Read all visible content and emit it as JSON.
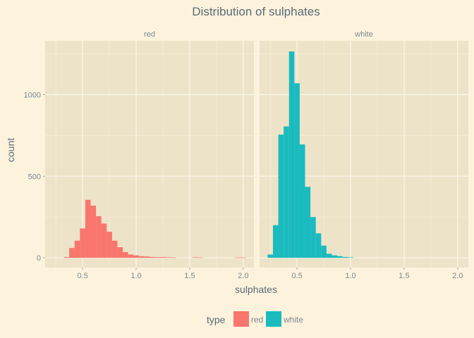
{
  "chart_data": {
    "type": "bar",
    "title": "Distribution of  sulphates",
    "xlabel": "sulphates",
    "ylabel": "count",
    "xlim": [
      0.15,
      2.1
    ],
    "ylim": [
      -60,
      1330
    ],
    "xticks": [
      {
        "value": 0.5,
        "label": "0.5"
      },
      {
        "value": 1.0,
        "label": "1.0"
      },
      {
        "value": 1.5,
        "label": "1.5"
      },
      {
        "value": 2.0,
        "label": "2.0"
      }
    ],
    "yticks": [
      {
        "value": 0,
        "label": "0"
      },
      {
        "value": 500,
        "label": "500"
      },
      {
        "value": 1000,
        "label": "1000"
      }
    ],
    "grid": true,
    "bin_width": 0.05,
    "legend": {
      "title": "type",
      "placement": "bottom",
      "items": [
        {
          "label": "red",
          "color": "#f8766d"
        },
        {
          "label": "white",
          "color": "#1abbbf"
        }
      ]
    },
    "panels": [
      {
        "label": "red",
        "color": "#f8766d",
        "bins": [
          {
            "x": 0.35,
            "count": 5
          },
          {
            "x": 0.4,
            "count": 60
          },
          {
            "x": 0.45,
            "count": 105
          },
          {
            "x": 0.5,
            "count": 180
          },
          {
            "x": 0.55,
            "count": 355
          },
          {
            "x": 0.6,
            "count": 320
          },
          {
            "x": 0.65,
            "count": 255
          },
          {
            "x": 0.7,
            "count": 210
          },
          {
            "x": 0.75,
            "count": 160
          },
          {
            "x": 0.8,
            "count": 105
          },
          {
            "x": 0.85,
            "count": 65
          },
          {
            "x": 0.9,
            "count": 35
          },
          {
            "x": 0.95,
            "count": 20
          },
          {
            "x": 1.0,
            "count": 15
          },
          {
            "x": 1.05,
            "count": 10
          },
          {
            "x": 1.1,
            "count": 8
          },
          {
            "x": 1.15,
            "count": 5
          },
          {
            "x": 1.2,
            "count": 4
          },
          {
            "x": 1.25,
            "count": 5
          },
          {
            "x": 1.3,
            "count": 3
          },
          {
            "x": 1.35,
            "count": 2
          },
          {
            "x": 1.55,
            "count": 3
          },
          {
            "x": 1.6,
            "count": 2
          },
          {
            "x": 1.95,
            "count": 2
          },
          {
            "x": 2.0,
            "count": 2
          }
        ]
      },
      {
        "label": "white",
        "color": "#1abbbf",
        "bins": [
          {
            "x": 0.25,
            "count": 20
          },
          {
            "x": 0.3,
            "count": 200
          },
          {
            "x": 0.35,
            "count": 755
          },
          {
            "x": 0.4,
            "count": 805
          },
          {
            "x": 0.45,
            "count": 1265
          },
          {
            "x": 0.5,
            "count": 1070
          },
          {
            "x": 0.55,
            "count": 695
          },
          {
            "x": 0.6,
            "count": 435
          },
          {
            "x": 0.65,
            "count": 250
          },
          {
            "x": 0.7,
            "count": 150
          },
          {
            "x": 0.75,
            "count": 75
          },
          {
            "x": 0.8,
            "count": 25
          },
          {
            "x": 0.85,
            "count": 15
          },
          {
            "x": 0.9,
            "count": 10
          },
          {
            "x": 0.95,
            "count": 5
          },
          {
            "x": 1.0,
            "count": 3
          }
        ]
      }
    ]
  }
}
